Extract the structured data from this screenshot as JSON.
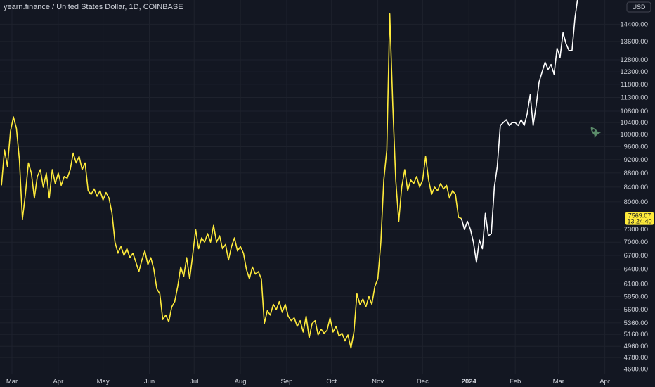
{
  "header": {
    "title": "yearn.finance / United States Dollar, 1D, COINBASE"
  },
  "unit_badge": "USD",
  "current_price": {
    "value": "7569.07",
    "countdown": "13:24:40",
    "color": "#ffeb3b"
  },
  "colors": {
    "background": "#131722",
    "grid": "#1e222d",
    "series_main": "#ffeb3b",
    "series_projection": "#ffffff",
    "text": "#d1d4dc",
    "rocket": "#5b8c6a"
  },
  "rocket_icon": "rocket-icon",
  "chart_data": {
    "type": "line",
    "title": "yearn.finance / United States Dollar, 1D, COINBASE",
    "y_scale": "log",
    "ylim": [
      4500,
      15600
    ],
    "xlim": [
      "2023-03-01",
      "2024-04-12"
    ],
    "yticks": [
      "14400.00",
      "13600.00",
      "12800.00",
      "12300.00",
      "11800.00",
      "11300.00",
      "10800.00",
      "10400.00",
      "10000.00",
      "9600.00",
      "9200.00",
      "8800.00",
      "8400.00",
      "8000.00",
      "7300.00",
      "7000.00",
      "6700.00",
      "6400.00",
      "6100.00",
      "5850.00",
      "5600.00",
      "5360.00",
      "5160.00",
      "4960.00",
      "4780.00",
      "4600.00"
    ],
    "xticks": [
      {
        "label": "Mar",
        "date": "2023-03-01",
        "year": false
      },
      {
        "label": "Apr",
        "date": "2023-04-01",
        "year": false
      },
      {
        "label": "May",
        "date": "2023-05-01",
        "year": false
      },
      {
        "label": "Jun",
        "date": "2023-06-01",
        "year": false
      },
      {
        "label": "Jul",
        "date": "2023-07-01",
        "year": false
      },
      {
        "label": "Aug",
        "date": "2023-08-01",
        "year": false
      },
      {
        "label": "Sep",
        "date": "2023-09-01",
        "year": false
      },
      {
        "label": "Oct",
        "date": "2023-10-01",
        "year": false
      },
      {
        "label": "Nov",
        "date": "2023-11-01",
        "year": false
      },
      {
        "label": "Dec",
        "date": "2023-12-01",
        "year": false
      },
      {
        "label": "2024",
        "date": "2024-01-01",
        "year": true
      },
      {
        "label": "Feb",
        "date": "2024-02-01",
        "year": false
      },
      {
        "label": "Mar",
        "date": "2024-03-01",
        "year": false
      },
      {
        "label": "Apr",
        "date": "2024-04-01",
        "year": false
      }
    ],
    "grid": true,
    "series": [
      {
        "color": "#ffeb3b",
        "points": [
          [
            "2023-02-22",
            8450
          ],
          [
            "2023-02-24",
            9500
          ],
          [
            "2023-02-26",
            9000
          ],
          [
            "2023-02-28",
            10100
          ],
          [
            "2023-03-02",
            10600
          ],
          [
            "2023-03-04",
            10200
          ],
          [
            "2023-03-06",
            9200
          ],
          [
            "2023-03-08",
            7550
          ],
          [
            "2023-03-10",
            8200
          ],
          [
            "2023-03-12",
            9100
          ],
          [
            "2023-03-14",
            8800
          ],
          [
            "2023-03-16",
            8100
          ],
          [
            "2023-03-18",
            8700
          ],
          [
            "2023-03-20",
            8900
          ],
          [
            "2023-03-22",
            8400
          ],
          [
            "2023-03-24",
            8800
          ],
          [
            "2023-03-26",
            8100
          ],
          [
            "2023-03-28",
            8900
          ],
          [
            "2023-03-30",
            8500
          ],
          [
            "2023-04-01",
            8800
          ],
          [
            "2023-04-03",
            8450
          ],
          [
            "2023-04-05",
            8700
          ],
          [
            "2023-04-07",
            8650
          ],
          [
            "2023-04-09",
            8900
          ],
          [
            "2023-04-11",
            9400
          ],
          [
            "2023-04-13",
            9100
          ],
          [
            "2023-04-15",
            9300
          ],
          [
            "2023-04-17",
            8900
          ],
          [
            "2023-04-19",
            9100
          ],
          [
            "2023-04-21",
            8300
          ],
          [
            "2023-04-23",
            8200
          ],
          [
            "2023-04-25",
            8350
          ],
          [
            "2023-04-27",
            8150
          ],
          [
            "2023-04-29",
            8300
          ],
          [
            "2023-05-01",
            8050
          ],
          [
            "2023-05-03",
            8250
          ],
          [
            "2023-05-05",
            8100
          ],
          [
            "2023-05-07",
            7700
          ],
          [
            "2023-05-09",
            7000
          ],
          [
            "2023-05-11",
            6750
          ],
          [
            "2023-05-13",
            6900
          ],
          [
            "2023-05-15",
            6700
          ],
          [
            "2023-05-17",
            6850
          ],
          [
            "2023-05-19",
            6650
          ],
          [
            "2023-05-21",
            6750
          ],
          [
            "2023-05-23",
            6550
          ],
          [
            "2023-05-25",
            6350
          ],
          [
            "2023-05-27",
            6600
          ],
          [
            "2023-05-29",
            6800
          ],
          [
            "2023-05-31",
            6500
          ],
          [
            "2023-06-02",
            6650
          ],
          [
            "2023-06-04",
            6400
          ],
          [
            "2023-06-06",
            6000
          ],
          [
            "2023-06-08",
            5900
          ],
          [
            "2023-06-10",
            5420
          ],
          [
            "2023-06-12",
            5500
          ],
          [
            "2023-06-14",
            5380
          ],
          [
            "2023-06-16",
            5650
          ],
          [
            "2023-06-18",
            5750
          ],
          [
            "2023-06-20",
            6050
          ],
          [
            "2023-06-22",
            6450
          ],
          [
            "2023-06-24",
            6250
          ],
          [
            "2023-06-26",
            6650
          ],
          [
            "2023-06-28",
            6200
          ],
          [
            "2023-06-30",
            6700
          ],
          [
            "2023-07-02",
            7300
          ],
          [
            "2023-07-04",
            6850
          ],
          [
            "2023-07-06",
            7100
          ],
          [
            "2023-07-08",
            7000
          ],
          [
            "2023-07-10",
            7200
          ],
          [
            "2023-07-12",
            7000
          ],
          [
            "2023-07-14",
            7400
          ],
          [
            "2023-07-16",
            7000
          ],
          [
            "2023-07-18",
            7150
          ],
          [
            "2023-07-20",
            6850
          ],
          [
            "2023-07-22",
            6950
          ],
          [
            "2023-07-24",
            6600
          ],
          [
            "2023-07-26",
            6900
          ],
          [
            "2023-07-28",
            7100
          ],
          [
            "2023-07-30",
            6800
          ],
          [
            "2023-08-01",
            6900
          ],
          [
            "2023-08-03",
            6750
          ],
          [
            "2023-08-05",
            6400
          ],
          [
            "2023-08-07",
            6200
          ],
          [
            "2023-08-09",
            6450
          ],
          [
            "2023-08-11",
            6300
          ],
          [
            "2023-08-13",
            6350
          ],
          [
            "2023-08-15",
            6200
          ],
          [
            "2023-08-17",
            5350
          ],
          [
            "2023-08-19",
            5580
          ],
          [
            "2023-08-21",
            5500
          ],
          [
            "2023-08-23",
            5700
          ],
          [
            "2023-08-25",
            5600
          ],
          [
            "2023-08-27",
            5750
          ],
          [
            "2023-08-29",
            5550
          ],
          [
            "2023-08-31",
            5700
          ],
          [
            "2023-09-02",
            5480
          ],
          [
            "2023-09-04",
            5400
          ],
          [
            "2023-09-06",
            5450
          ],
          [
            "2023-09-08",
            5300
          ],
          [
            "2023-09-10",
            5400
          ],
          [
            "2023-09-12",
            5200
          ],
          [
            "2023-09-14",
            5480
          ],
          [
            "2023-09-16",
            5100
          ],
          [
            "2023-09-18",
            5350
          ],
          [
            "2023-09-20",
            5400
          ],
          [
            "2023-09-22",
            5150
          ],
          [
            "2023-09-24",
            5250
          ],
          [
            "2023-09-26",
            5180
          ],
          [
            "2023-09-28",
            5230
          ],
          [
            "2023-09-30",
            5450
          ],
          [
            "2023-10-02",
            5200
          ],
          [
            "2023-10-04",
            5300
          ],
          [
            "2023-10-06",
            5130
          ],
          [
            "2023-10-08",
            5180
          ],
          [
            "2023-10-10",
            5050
          ],
          [
            "2023-10-12",
            5150
          ],
          [
            "2023-10-14",
            4930
          ],
          [
            "2023-10-16",
            5200
          ],
          [
            "2023-10-18",
            5900
          ],
          [
            "2023-10-20",
            5700
          ],
          [
            "2023-10-22",
            5800
          ],
          [
            "2023-10-24",
            5650
          ],
          [
            "2023-10-26",
            5850
          ],
          [
            "2023-10-28",
            5700
          ],
          [
            "2023-10-30",
            6050
          ],
          [
            "2023-11-01",
            6200
          ],
          [
            "2023-11-03",
            7000
          ],
          [
            "2023-11-05",
            8600
          ],
          [
            "2023-11-07",
            9500
          ],
          [
            "2023-11-09",
            14900
          ],
          [
            "2023-11-11",
            11000
          ],
          [
            "2023-11-13",
            8600
          ],
          [
            "2023-11-15",
            7500
          ],
          [
            "2023-11-17",
            8400
          ],
          [
            "2023-11-19",
            8900
          ],
          [
            "2023-11-21",
            8300
          ],
          [
            "2023-11-23",
            8600
          ],
          [
            "2023-11-25",
            8500
          ],
          [
            "2023-11-27",
            8700
          ],
          [
            "2023-11-29",
            8400
          ],
          [
            "2023-12-01",
            8600
          ],
          [
            "2023-12-03",
            9300
          ],
          [
            "2023-12-05",
            8600
          ],
          [
            "2023-12-07",
            8200
          ],
          [
            "2023-12-09",
            8400
          ],
          [
            "2023-12-11",
            8300
          ],
          [
            "2023-12-13",
            8500
          ],
          [
            "2023-12-15",
            8350
          ],
          [
            "2023-12-17",
            8450
          ],
          [
            "2023-12-19",
            8100
          ],
          [
            "2023-12-21",
            8300
          ],
          [
            "2023-12-23",
            8200
          ],
          [
            "2023-12-25",
            7600
          ],
          [
            "2023-12-27",
            7570
          ]
        ]
      },
      {
        "color": "#ffffff",
        "points": [
          [
            "2023-12-27",
            7570
          ],
          [
            "2023-12-29",
            7300
          ],
          [
            "2023-12-31",
            7500
          ],
          [
            "2024-01-02",
            7300
          ],
          [
            "2024-01-04",
            7000
          ],
          [
            "2024-01-06",
            6550
          ],
          [
            "2024-01-08",
            7050
          ],
          [
            "2024-01-10",
            6850
          ],
          [
            "2024-01-12",
            7700
          ],
          [
            "2024-01-14",
            7150
          ],
          [
            "2024-01-16",
            7200
          ],
          [
            "2024-01-18",
            8400
          ],
          [
            "2024-01-20",
            9000
          ],
          [
            "2024-01-22",
            10300
          ],
          [
            "2024-01-24",
            10400
          ],
          [
            "2024-01-26",
            10500
          ],
          [
            "2024-01-28",
            10300
          ],
          [
            "2024-01-30",
            10400
          ],
          [
            "2024-02-01",
            10400
          ],
          [
            "2024-02-03",
            10300
          ],
          [
            "2024-02-05",
            10500
          ],
          [
            "2024-02-07",
            10300
          ],
          [
            "2024-02-09",
            10700
          ],
          [
            "2024-02-11",
            11400
          ],
          [
            "2024-02-13",
            10300
          ],
          [
            "2024-02-15",
            11000
          ],
          [
            "2024-02-17",
            11900
          ],
          [
            "2024-02-19",
            12300
          ],
          [
            "2024-02-21",
            12700
          ],
          [
            "2024-02-23",
            12400
          ],
          [
            "2024-02-25",
            12600
          ],
          [
            "2024-02-27",
            12200
          ],
          [
            "2024-02-29",
            13300
          ],
          [
            "2024-03-02",
            12900
          ],
          [
            "2024-03-04",
            14000
          ],
          [
            "2024-03-06",
            13500
          ],
          [
            "2024-03-08",
            13200
          ],
          [
            "2024-03-10",
            13200
          ],
          [
            "2024-03-12",
            14700
          ],
          [
            "2024-03-14",
            15800
          ]
        ]
      }
    ]
  }
}
